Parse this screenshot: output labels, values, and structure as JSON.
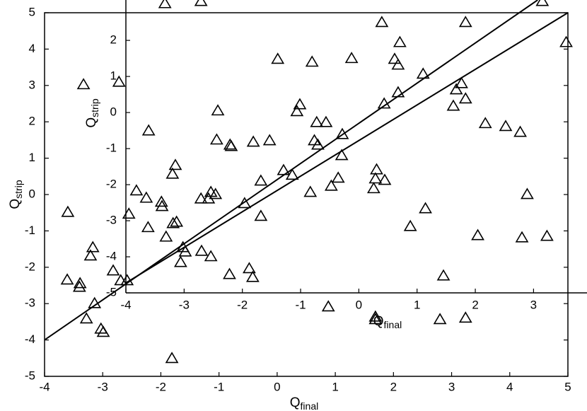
{
  "chart_data": [
    {
      "type": "scatter",
      "xlabel": {
        "text": "Q",
        "subscript": "final"
      },
      "ylabel": {
        "text": "Q",
        "subscript": "strip"
      },
      "xlim": [
        -4,
        5
      ],
      "ylim": [
        -5,
        5
      ],
      "xticks": [
        -4,
        -3,
        -2,
        -1,
        0,
        1,
        2,
        3,
        4,
        5
      ],
      "yticks": [
        -5,
        -4,
        -3,
        -2,
        -1,
        0,
        1,
        2,
        3,
        4,
        5
      ],
      "color": "#000000",
      "x": [
        -1.93,
        -1.31,
        1.8,
        2.11,
        3.24,
        4.56,
        4.97,
        0.01,
        0.6,
        1.28,
        2.02,
        2.08,
        2.51,
        3.17,
        3.08,
        2.08,
        1.84,
        3.24,
        3.03,
        -1.02,
        0.39,
        0.34,
        0.68,
        0.84,
        -2.21,
        1.12,
        3.58,
        3.93,
        4.18,
        -1.04,
        -0.81,
        -0.79,
        -0.41,
        -0.13,
        0.64,
        0.7,
        1.11,
        0.11,
        0.26,
        1.71,
        -1.75,
        -1.8,
        1.69,
        1.85,
        -0.28,
        1.05,
        -2.42,
        -2.25,
        -1.14,
        -1.31,
        -1.18,
        -1.06,
        -1.99,
        -1.98,
        0.57,
        0.93,
        1.66,
        4.3,
        -2.55,
        -0.56,
        -0.28,
        2.55,
        -2.22,
        -1.79,
        -1.73,
        2.29,
        -1.91,
        3.45,
        4.21,
        4.64,
        -3.6,
        -3.33,
        -2.72,
        -3.17,
        -3.21,
        -1.62,
        -1.58,
        -1.3,
        -1.14,
        -1.66,
        -2.82,
        -3.61,
        -3.39,
        -3.4,
        -2.69,
        -2.58,
        -0.82,
        -0.48,
        -0.42,
        2.86,
        -3.14,
        0.88,
        1.69,
        1.69,
        2.8,
        3.24,
        -3.03,
        -2.99,
        -3.28,
        -1.81
      ],
      "values": [
        5.25,
        5.31,
        4.73,
        4.18,
        4.73,
        5.31,
        4.18,
        3.72,
        3.64,
        3.74,
        3.72,
        3.56,
        3.31,
        3.05,
        2.88,
        2.8,
        2.49,
        2.63,
        2.43,
        2.3,
        2.47,
        2.28,
        1.98,
        1.98,
        1.75,
        1.65,
        1.95,
        1.87,
        1.71,
        1.5,
        1.36,
        1.32,
        1.44,
        1.48,
        1.48,
        1.36,
        1.07,
        0.66,
        0.53,
        0.68,
        0.8,
        0.56,
        0.43,
        0.39,
        0.37,
        0.45,
        0.1,
        -0.1,
        0.06,
        -0.12,
        -0.12,
        0.0,
        -0.21,
        -0.33,
        0.06,
        0.23,
        0.16,
        0.0,
        -0.54,
        -0.25,
        -0.6,
        -0.39,
        -0.91,
        -0.8,
        -0.76,
        -0.88,
        -1.17,
        -1.13,
        -1.19,
        -1.15,
        -0.49,
        3.02,
        3.09,
        -1.46,
        -1.69,
        -1.46,
        -1.58,
        -1.56,
        -1.71,
        -1.87,
        -2.1,
        -2.35,
        -2.45,
        -2.55,
        -2.37,
        -2.37,
        -2.2,
        -2.04,
        -2.28,
        -2.24,
        -3.0,
        -3.09,
        -3.37,
        -3.44,
        -3.44,
        -3.4,
        -3.7,
        -3.79,
        -3.42,
        -4.51
      ],
      "lines": [
        {
          "x": [
            -4,
            4.48
          ],
          "y": [
            -4,
            5.35
          ]
        },
        {
          "x": [
            -2.6,
            5
          ],
          "y": [
            -2.43,
            5
          ]
        }
      ]
    },
    {
      "type": "axes",
      "xlabel": {
        "text": "Q",
        "subscript": "final"
      },
      "ylabel": {
        "text": "Q",
        "subscript": "strip"
      },
      "xlim": [
        -4,
        3.59
      ],
      "ylim": [
        -5,
        3.12
      ],
      "xticks": [
        -4,
        -3,
        -2,
        -1,
        0,
        1,
        2,
        3
      ],
      "yticks": [
        -5,
        -4,
        -3,
        -2,
        -1,
        0,
        1,
        2
      ]
    }
  ]
}
